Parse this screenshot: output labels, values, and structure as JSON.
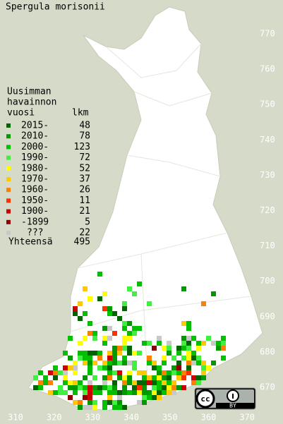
{
  "title": "Spergula morisonii",
  "legend": {
    "heading": [
      "Uusimman",
      "havainnon",
      "vuosi"
    ],
    "count_heading": "lkm",
    "rows": [
      {
        "label": "2015-",
        "count": 48,
        "color": "#006400"
      },
      {
        "label": "2010-",
        "count": 78,
        "color": "#009a00"
      },
      {
        "label": "2000-",
        "count": 123,
        "color": "#00c000"
      },
      {
        "label": "1990-",
        "count": 72,
        "color": "#40f040"
      },
      {
        "label": "1980-",
        "count": 52,
        "color": "#ffff00"
      },
      {
        "label": "1970-",
        "count": 37,
        "color": "#ffc800"
      },
      {
        "label": "1960-",
        "count": 26,
        "color": "#ff8000"
      },
      {
        "label": "1950-",
        "count": 11,
        "color": "#ff3000"
      },
      {
        "label": "1900-",
        "count": 21,
        "color": "#cc0000"
      },
      {
        "label": "-1899",
        "count": 5,
        "color": "#8c0000"
      },
      {
        "label": "???",
        "count": 22,
        "color": "#c8c8c8"
      }
    ],
    "total": {
      "label": "Yhteensä",
      "value": 495
    }
  },
  "grid": {
    "y_labels": [
      770,
      760,
      750,
      740,
      730,
      720,
      710,
      700,
      690,
      680,
      670
    ],
    "x_labels": [
      310,
      320,
      330,
      340,
      350,
      360,
      370
    ]
  },
  "license": {
    "text": "BY"
  }
}
